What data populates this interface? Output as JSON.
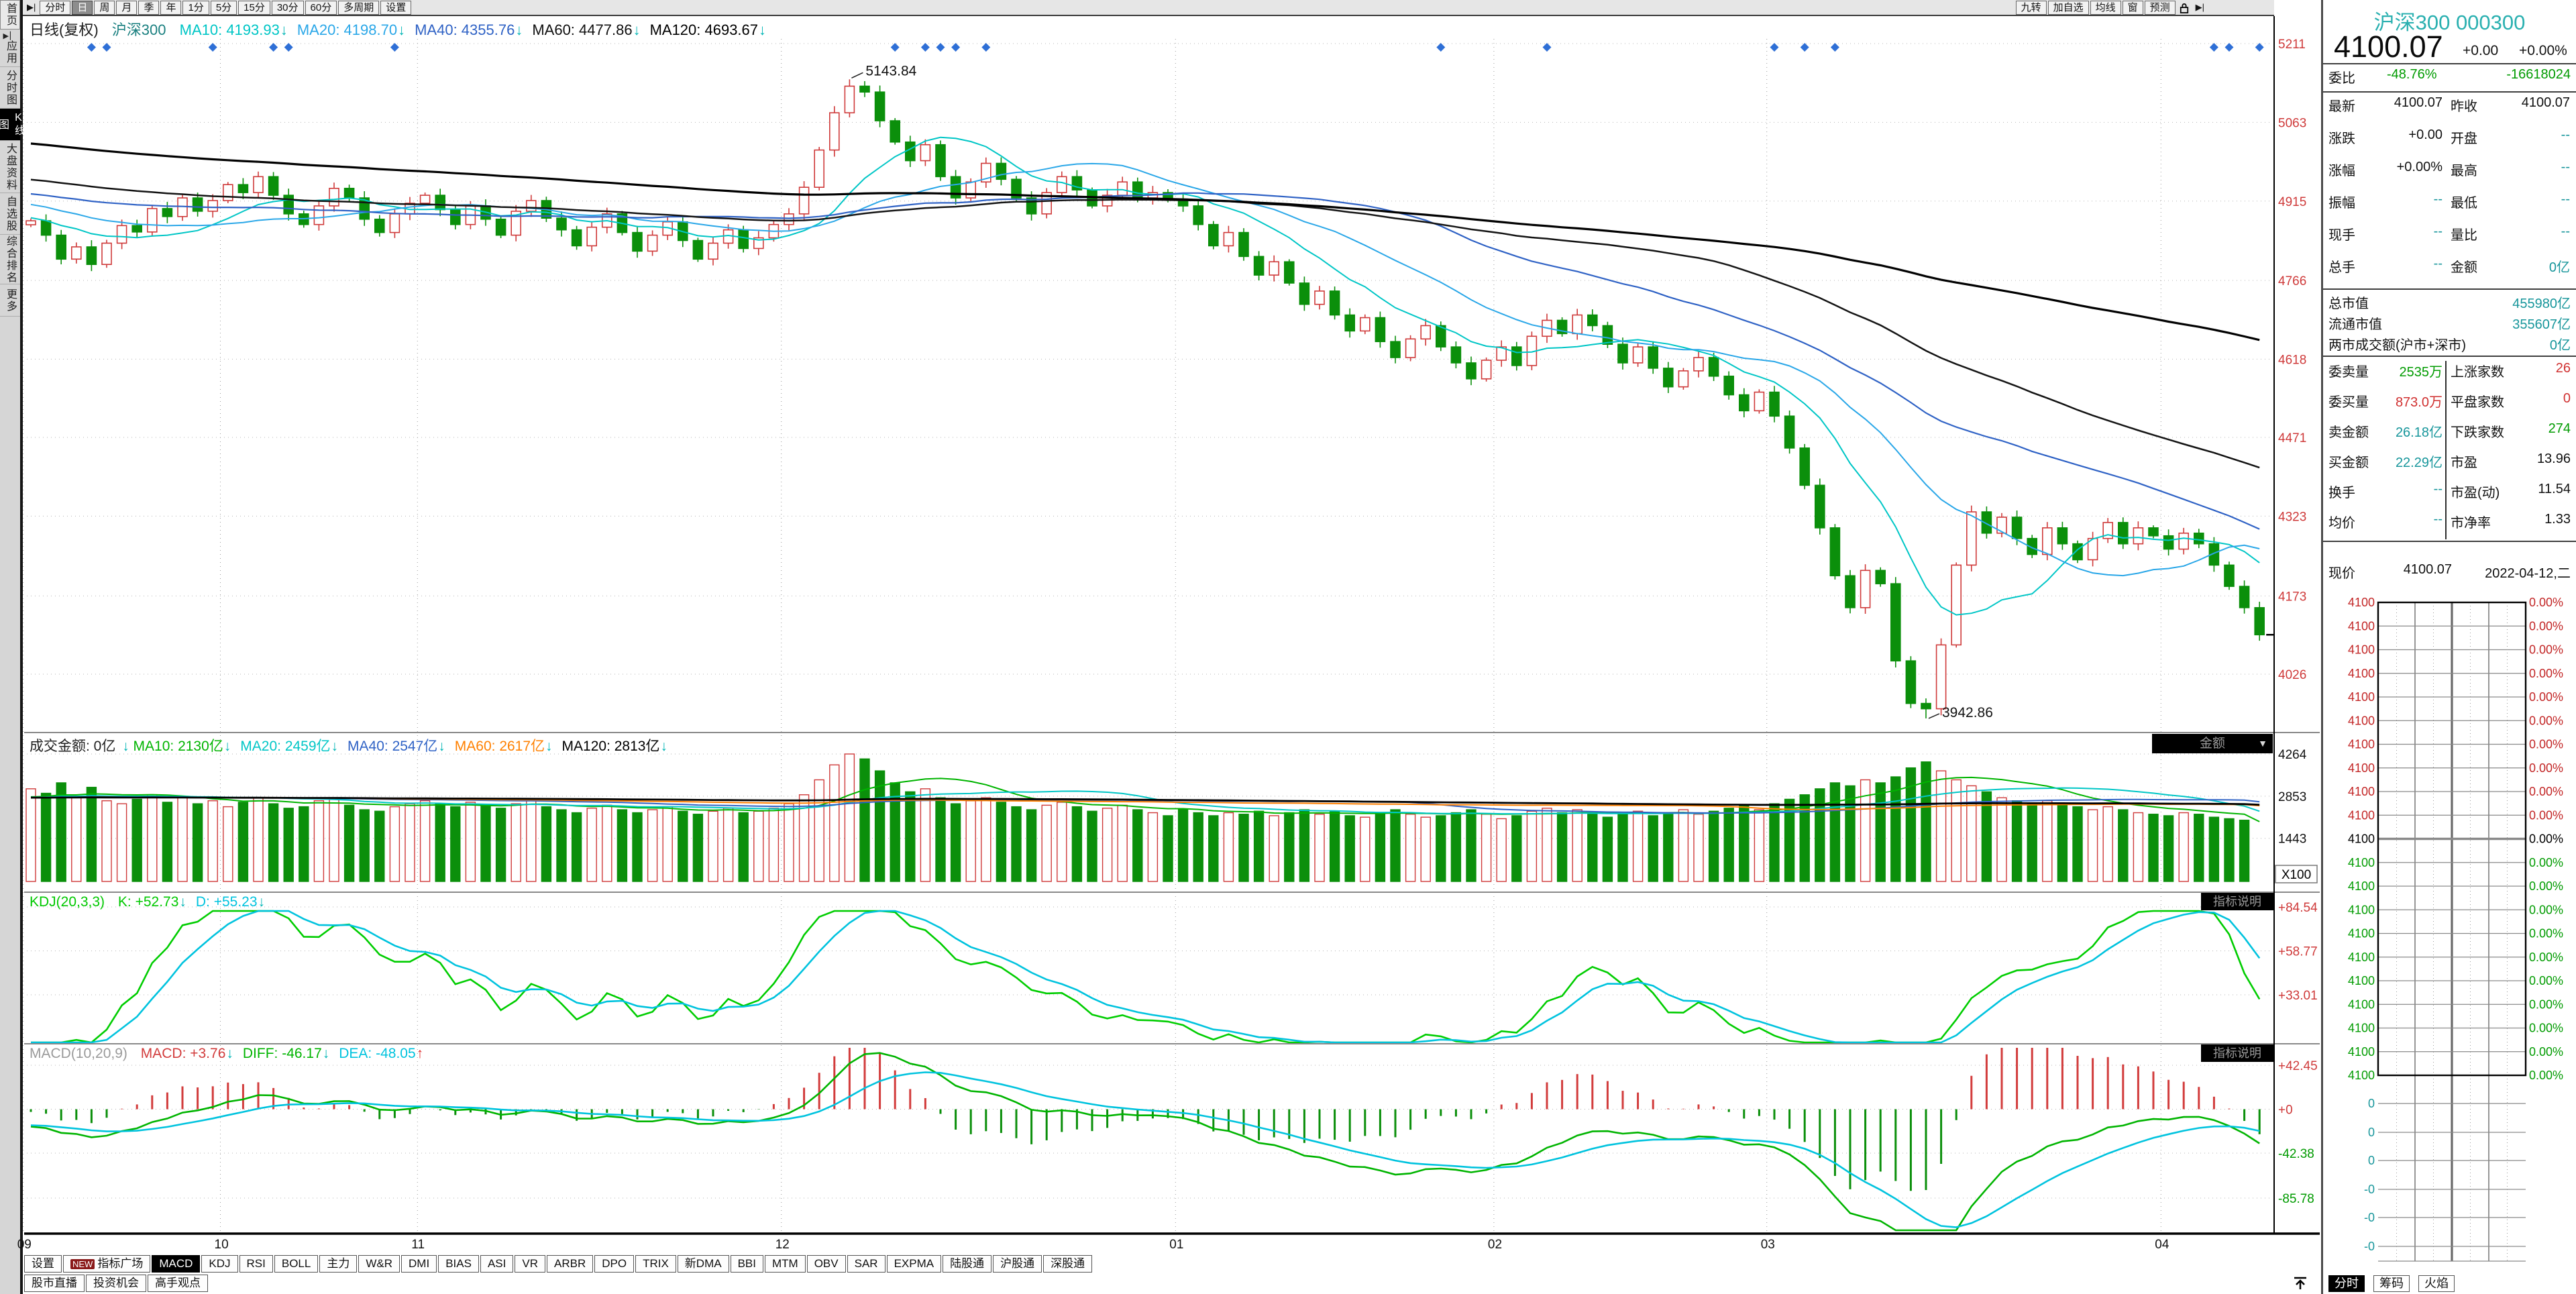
{
  "topbar": {
    "periods": [
      "分时",
      "日",
      "周",
      "月",
      "季",
      "年",
      "1分",
      "5分",
      "15分",
      "30分",
      "60分",
      "多周期",
      "设置"
    ],
    "active_period": "日",
    "right_buttons": [
      "九转",
      "加自选",
      "均线",
      "窗",
      "预测"
    ]
  },
  "sidebar": {
    "items": [
      {
        "label": "首页",
        "style": "btnlook"
      },
      {
        "label": "应用",
        "icon": "▶▏"
      },
      {
        "label": "分时图"
      },
      {
        "label": "K线图",
        "active": true
      },
      {
        "label": "大盘资料"
      },
      {
        "label": "自选股"
      },
      {
        "label": "综合排名"
      },
      {
        "label": "更多"
      }
    ]
  },
  "main_header": {
    "period_label": "日线(复权)",
    "symbol": "沪深300",
    "mas": [
      {
        "text": "MA10: 4193.93",
        "arrow": "↓",
        "color": "#00c6c6",
        "arrow_color": "#00b5b5"
      },
      {
        "text": "MA20: 4198.70",
        "arrow": "↓",
        "color": "#2aa7e8",
        "arrow_color": "#00b5b5"
      },
      {
        "text": "MA40: 4355.76",
        "arrow": "↓",
        "color": "#2f62c5",
        "arrow_color": "#00b5b5"
      },
      {
        "text": "MA60: 4477.86",
        "arrow": "↓",
        "color": "#111111",
        "arrow_color": "#00b5b5"
      },
      {
        "text": "MA120: 4693.67",
        "arrow": "↓",
        "color": "#000000",
        "arrow_color": "#00b5b5"
      }
    ]
  },
  "volume_header": {
    "label": "成交金额: 0亿",
    "arrow": "↓",
    "arrow_color": "#00b5b5",
    "mas": [
      {
        "text": "MA10: 2130亿",
        "arrow": "↓",
        "color": "#00b400",
        "arrow_color": "#00b5b5"
      },
      {
        "text": "MA20: 2459亿",
        "arrow": "↓",
        "color": "#00c6c6",
        "arrow_color": "#00b5b5"
      },
      {
        "text": "MA40: 2547亿",
        "arrow": "↓",
        "color": "#2f62c5",
        "arrow_color": "#00b5b5"
      },
      {
        "text": "MA60: 2617亿",
        "arrow": "↓",
        "color": "#ff8000",
        "arrow_color": "#00b5b5"
      },
      {
        "text": "MA120: 2813亿",
        "arrow": "↓",
        "color": "#000000",
        "arrow_color": "#00b5b5"
      }
    ],
    "dropdown": "金额"
  },
  "kdj_header": {
    "label": "KDJ(20,3,3)",
    "label_color": "#00c800",
    "series": [
      {
        "text": "K: +52.73",
        "arrow": "↓",
        "color": "#00c800",
        "arrow_color": "#00b5b5"
      },
      {
        "text": "D: +55.23",
        "arrow": "↓",
        "color": "#00c3de",
        "arrow_color": "#00b5b5"
      }
    ],
    "badge": "指标说明"
  },
  "macd_header": {
    "label": "MACD(10,20,9)",
    "label_color": "#9a9a9a",
    "series": [
      {
        "text": "MACD: +3.76",
        "arrow": "↓",
        "color": "#d23c3c",
        "arrow_color": "#00b5b5"
      },
      {
        "text": "DIFF: -46.17",
        "arrow": "↓",
        "color": "#00b400",
        "arrow_color": "#00b5b5"
      },
      {
        "text": "DEA: -48.05",
        "arrow": "↑",
        "color": "#00c3de",
        "arrow_color": "#e03030"
      }
    ],
    "badge": "指标说明"
  },
  "bottom_tabs": {
    "row1": [
      "设置",
      "指标广场",
      "MACD",
      "KDJ",
      "RSI",
      "BOLL",
      "主力",
      "W&R",
      "DMI",
      "BIAS",
      "ASI",
      "VR",
      "ARBR",
      "DPO",
      "TRIX",
      "新DMA",
      "BBI",
      "MTM",
      "OBV",
      "SAR",
      "EXPMA",
      "陆股通",
      "沪股通",
      "深股通"
    ],
    "new_badge": "NEW",
    "badge_on": "指标广场",
    "active": "MACD",
    "row2": [
      "股市直播",
      "投资机会",
      "高手观点"
    ]
  },
  "quote_panel": {
    "title": "沪深300 000300",
    "price": "4100.07",
    "change": "+0.00",
    "change_pct": "+0.00%",
    "weibi": {
      "label": "委比",
      "value": "-48.76%",
      "extra": "-16618024"
    },
    "rows_basic": [
      {
        "l1": "最新",
        "v1": "4100.07",
        "c1": "k",
        "l2": "昨收",
        "v2": "4100.07",
        "c2": "k"
      },
      {
        "l1": "涨跌",
        "v1": "+0.00",
        "c1": "k",
        "l2": "开盘",
        "v2": "--",
        "c2": "t"
      },
      {
        "l1": "涨幅",
        "v1": "+0.00%",
        "c1": "k",
        "l2": "最高",
        "v2": "--",
        "c2": "t"
      },
      {
        "l1": "振幅",
        "v1": "--",
        "c1": "t",
        "l2": "最低",
        "v2": "--",
        "c2": "t"
      },
      {
        "l1": "现手",
        "v1": "--",
        "c1": "t",
        "l2": "量比",
        "v2": "--",
        "c2": "t"
      },
      {
        "l1": "总手",
        "v1": "--",
        "c1": "t",
        "l2": "金额",
        "v2": "0亿",
        "c2": "t"
      }
    ],
    "rows_caps": [
      {
        "label": "总市值",
        "value": "455980亿"
      },
      {
        "label": "流通市值",
        "value": "355607亿"
      },
      {
        "label": "两市成交额(沪市+深市)",
        "value": "0亿"
      }
    ],
    "rows_flow": [
      {
        "l1": "委卖量",
        "v1": "2535万",
        "c1": "g",
        "l2": "上涨家数",
        "v2": "26",
        "c2": "r"
      },
      {
        "l1": "委买量",
        "v1": "873.0万",
        "c1": "r",
        "l2": "平盘家数",
        "v2": "0",
        "c2": "r"
      },
      {
        "l1": "卖金额",
        "v1": "26.18亿",
        "c1": "t",
        "l2": "下跌家数",
        "v2": "274",
        "c2": "g"
      },
      {
        "l1": "买金额",
        "v1": "22.29亿",
        "c1": "t",
        "l2": "市盈",
        "v2": "13.96",
        "c2": "k"
      },
      {
        "l1": "换手",
        "v1": "--",
        "c1": "t",
        "l2": "市盈(动)",
        "v2": "11.54",
        "c2": "k"
      },
      {
        "l1": "均价",
        "v1": "--",
        "c1": "t",
        "l2": "市净率",
        "v2": "1.33",
        "c2": "k"
      }
    ],
    "current": {
      "label": "现价",
      "value": "4100.07",
      "date": "2022-04-12,二"
    },
    "minichart": {
      "price_label": "4100",
      "pct_label": "0.00%",
      "vol_labels": [
        "0",
        "0",
        "0",
        "-0",
        "-0",
        "-0"
      ]
    },
    "tabs": [
      {
        "label": "分时",
        "active": true
      },
      {
        "label": "筹码"
      },
      {
        "label": "火焰"
      }
    ]
  },
  "chart_data": {
    "type": "candlestick",
    "title": "沪深300 日线(复权)",
    "x_axis": {
      "months": [
        {
          "label": "09",
          "index": 0
        },
        {
          "label": "10",
          "index": 13
        },
        {
          "label": "11",
          "index": 26
        },
        {
          "label": "12",
          "index": 50
        },
        {
          "label": "01",
          "index": 76
        },
        {
          "label": "02",
          "index": 97
        },
        {
          "label": "03",
          "index": 115
        },
        {
          "label": "04",
          "index": 141
        }
      ]
    },
    "main": {
      "yticks": [
        5211,
        5063,
        4915,
        4766,
        4618,
        4471,
        4323,
        4173,
        4026
      ],
      "ylim": [
        3920,
        5220
      ],
      "up_color": "#cf3a3a",
      "down_color": "#0b8f0b",
      "ma_periods": [
        10,
        20,
        40,
        60,
        120
      ],
      "ma_colors": [
        "#00c6c6",
        "#2aa7e8",
        "#2f62c5",
        "#141414",
        "#000000"
      ],
      "marker_color": "#2e6fd6",
      "marker_indices": [
        4,
        5,
        12,
        16,
        17,
        24,
        57,
        59,
        60,
        61,
        63,
        93,
        100,
        115,
        117,
        119,
        144,
        145,
        147
      ],
      "peak": {
        "index": 54,
        "high": 5143.84,
        "label": "5143.84"
      },
      "trough": {
        "index": 125,
        "low": 3942.86,
        "label": "3942.86"
      },
      "last_price": 4100.07,
      "history_spec": {
        "count": 120,
        "start": 5160,
        "end": 4890,
        "wobble": 20
      },
      "closes": [
        4878,
        4851,
        4806,
        4829,
        4796,
        4836,
        4869,
        4857,
        4901,
        4886,
        4921,
        4896,
        4916,
        4946,
        4931,
        4961,
        4926,
        4891,
        4871,
        4906,
        4939,
        4921,
        4881,
        4856,
        4891,
        4911,
        4926,
        4899,
        4871,
        4906,
        4881,
        4851,
        4896,
        4916,
        4883,
        4861,
        4831,
        4866,
        4891,
        4856,
        4821,
        4851,
        4876,
        4841,
        4806,
        4836,
        4861,
        4826,
        4846,
        4871,
        4891,
        4941,
        5011,
        5081,
        5131,
        5120,
        5066,
        5026,
        4991,
        5021,
        4961,
        4921,
        4951,
        4986,
        4956,
        4921,
        4891,
        4931,
        4961,
        4936,
        4906,
        4926,
        4951,
        4921,
        4931,
        4919,
        4906,
        4871,
        4831,
        4856,
        4811,
        4776,
        4801,
        4761,
        4721,
        4746,
        4701,
        4671,
        4696,
        4651,
        4621,
        4656,
        4681,
        4641,
        4611,
        4581,
        4616,
        4641,
        4606,
        4661,
        4691,
        4666,
        4701,
        4681,
        4646,
        4611,
        4641,
        4601,
        4566,
        4596,
        4621,
        4586,
        4551,
        4521,
        4556,
        4511,
        4451,
        4381,
        4301,
        4211,
        4151,
        4221,
        4196,
        4051,
        3971,
        3961,
        4081,
        4231,
        4331,
        4291,
        4321,
        4281,
        4251,
        4301,
        4271,
        4241,
        4281,
        4311,
        4271,
        4301,
        4286,
        4261,
        4291,
        4271,
        4231,
        4191,
        4151,
        4100.07
      ]
    },
    "volume": {
      "yticks": [
        4264,
        2853,
        1443
      ],
      "unit_label": "X100",
      "ma_periods": [
        10,
        20,
        40,
        60,
        120
      ],
      "ma_colors": [
        "#00b400",
        "#00c6c6",
        "#2f62c5",
        "#ff8000",
        "#000000"
      ],
      "history_fill": 2800,
      "values": [
        3100,
        2950,
        3300,
        2800,
        3150,
        2700,
        2600,
        2750,
        2900,
        2650,
        2800,
        2600,
        2700,
        2500,
        2650,
        2800,
        2600,
        2450,
        2500,
        2700,
        2750,
        2550,
        2400,
        2350,
        2500,
        2600,
        2700,
        2600,
        2500,
        2650,
        2550,
        2450,
        2600,
        2700,
        2500,
        2400,
        2300,
        2450,
        2550,
        2400,
        2300,
        2400,
        2500,
        2350,
        2250,
        2350,
        2450,
        2300,
        2350,
        2450,
        2600,
        2900,
        3400,
        3900,
        4264,
        4100,
        3700,
        3300,
        3000,
        3100,
        2800,
        2600,
        2700,
        2800,
        2650,
        2500,
        2400,
        2550,
        2650,
        2500,
        2350,
        2450,
        2550,
        2400,
        2300,
        2200,
        2400,
        2300,
        2200,
        2300,
        2250,
        2350,
        2200,
        2300,
        2400,
        2250,
        2350,
        2200,
        2150,
        2300,
        2400,
        2250,
        2150,
        2200,
        2300,
        2400,
        2250,
        2100,
        2200,
        2350,
        2450,
        2300,
        2400,
        2250,
        2150,
        2250,
        2350,
        2200,
        2300,
        2400,
        2250,
        2350,
        2450,
        2550,
        2400,
        2600,
        2750,
        2900,
        3100,
        3300,
        3200,
        3400,
        3300,
        3500,
        3800,
        4000,
        3700,
        3400,
        3200,
        3000,
        2800,
        2700,
        2600,
        2700,
        2600,
        2500,
        2400,
        2500,
        2400,
        2300,
        2250,
        2200,
        2300,
        2250,
        2150,
        2100,
        2050,
        0
      ]
    },
    "kdj": {
      "yticks": [
        {
          "label": "+84.54",
          "value": 84.54
        },
        {
          "label": "+58.77",
          "value": 58.77
        },
        {
          "label": "+33.01",
          "value": 33.01
        }
      ],
      "k_color": "#00cd00",
      "d_color": "#00c3de"
    },
    "macd": {
      "yticks": [
        {
          "label": "+42.45",
          "value": 42.45
        },
        {
          "label": "+0",
          "value": 0
        },
        {
          "label": "-42.38",
          "value": -42.38
        },
        {
          "label": "-85.78",
          "value": -85.78
        }
      ],
      "diff_color": "#00b400",
      "dea_color": "#00c3de",
      "hist_up_color": "#d23c3c",
      "hist_down_color": "#0b8f0b"
    }
  }
}
